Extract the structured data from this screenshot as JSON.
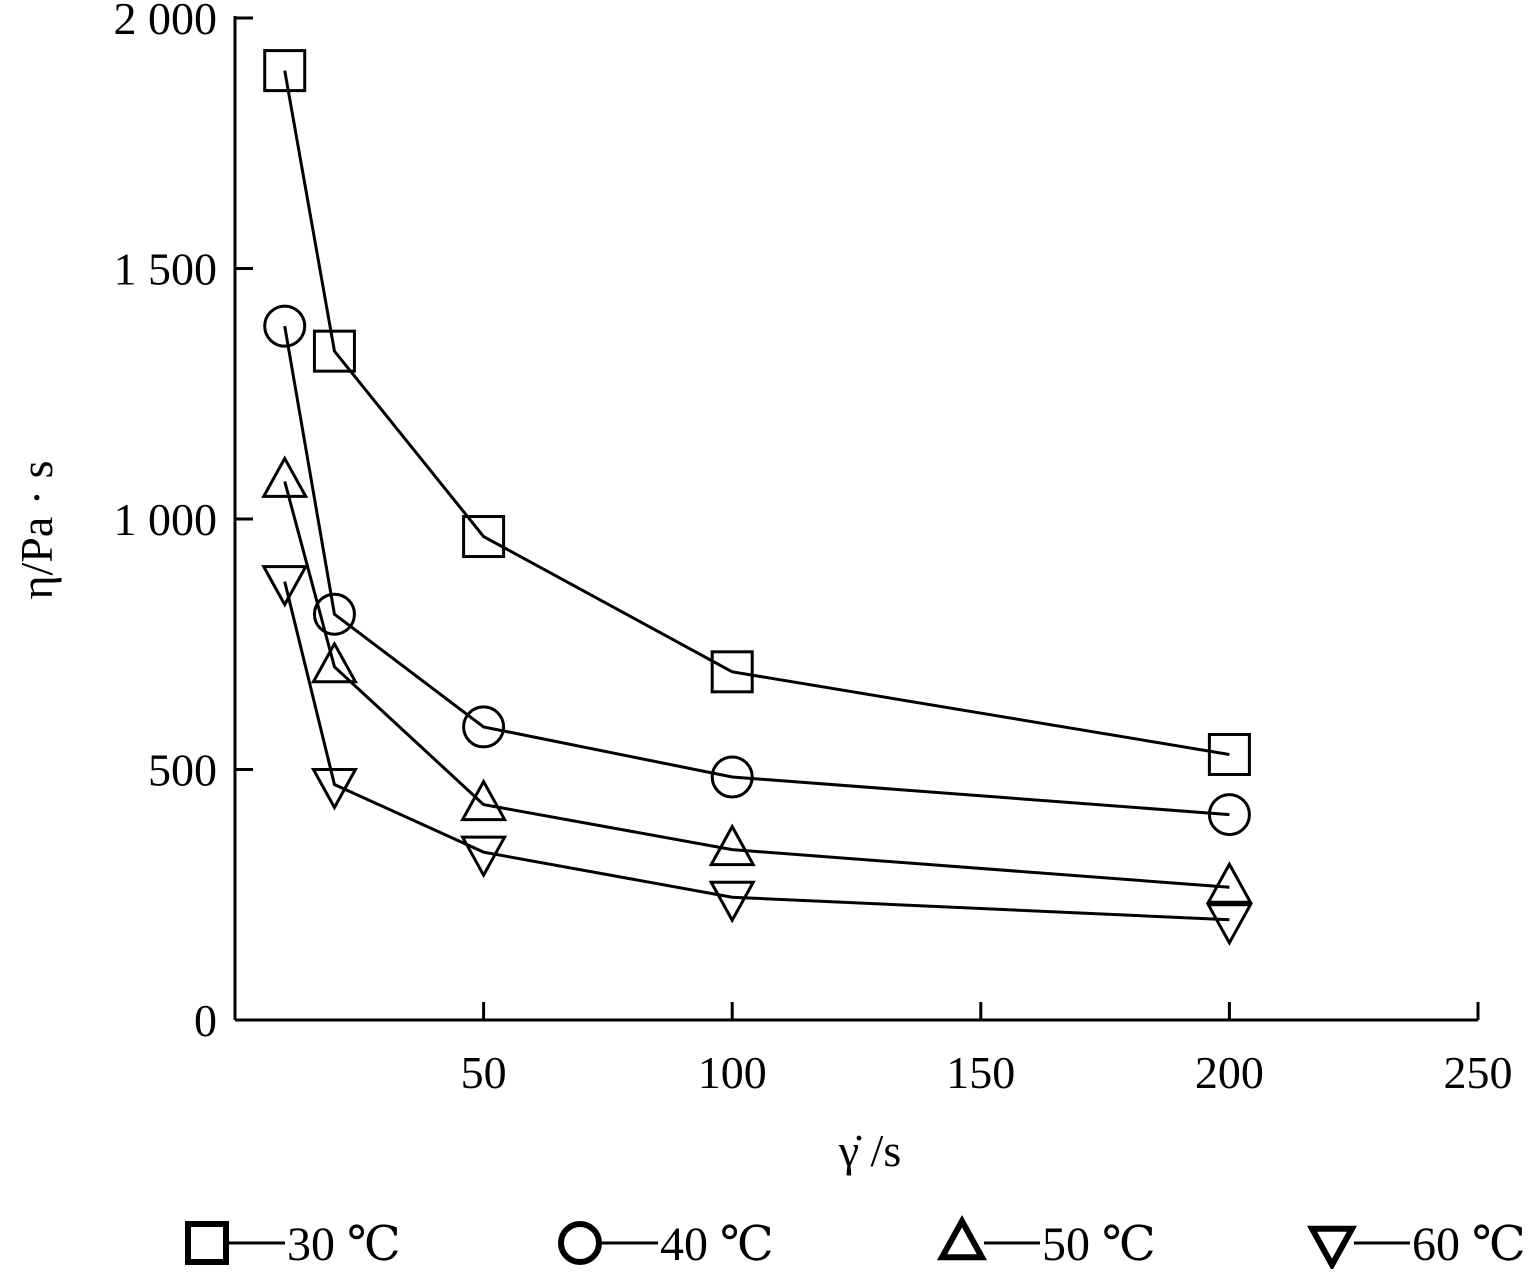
{
  "chart_data": {
    "type": "line",
    "xlabel": "γ̇ /s",
    "ylabel": "η/Pa · s",
    "xlim": [
      0,
      250
    ],
    "ylim": [
      0,
      2000
    ],
    "xticks": [
      50,
      100,
      150,
      200,
      250
    ],
    "yticks": [
      0,
      500,
      1000,
      1500,
      2000
    ],
    "ytick_labels": [
      "0",
      "500",
      "1 000",
      "1 500",
      "2 000"
    ],
    "xtick_labels": [
      "50",
      "100",
      "150",
      "200",
      "250"
    ],
    "grid": false,
    "legend_position": "bottom",
    "series": [
      {
        "name": "30 ℃",
        "marker": "square",
        "x": [
          10,
          20,
          50,
          100,
          200
        ],
        "y": [
          1895,
          1335,
          965,
          695,
          530
        ]
      },
      {
        "name": "40 ℃",
        "marker": "circle",
        "x": [
          10,
          20,
          50,
          100,
          200
        ],
        "y": [
          1385,
          810,
          585,
          485,
          410
        ]
      },
      {
        "name": "50 ℃",
        "marker": "triangle-up",
        "x": [
          10,
          20,
          50,
          100,
          200
        ],
        "y": [
          1075,
          705,
          430,
          340,
          265
        ]
      },
      {
        "name": "60 ℃",
        "marker": "triangle-down",
        "x": [
          10,
          20,
          50,
          100,
          200
        ],
        "y": [
          875,
          470,
          335,
          245,
          200
        ]
      }
    ]
  }
}
